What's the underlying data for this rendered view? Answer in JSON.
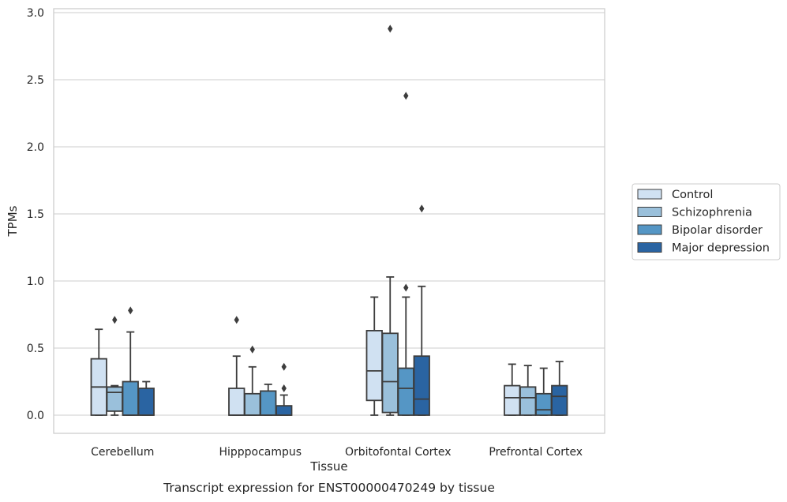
{
  "chart_data": {
    "type": "box",
    "caption": "Transcript expression for ENST00000470249 by tissue",
    "xlabel": "Tissue",
    "ylabel": "TPMs",
    "ylim": [
      -0.14,
      3.03
    ],
    "yticks": [
      "0.0",
      "0.5",
      "1.0",
      "1.5",
      "2.0",
      "2.5",
      "3.0"
    ],
    "grid": "horizontal",
    "legend_position": "right",
    "categories": [
      "Cerebellum",
      "Hipppocampus",
      "Orbitofontal Cortex",
      "Prefrontal Cortex"
    ],
    "series": [
      {
        "name": "Control",
        "color": "#d0e1f2",
        "boxes": [
          {
            "min": 0.0,
            "q1": 0.0,
            "median": 0.21,
            "q3": 0.42,
            "max": 0.64,
            "outliers": []
          },
          {
            "min": 0.0,
            "q1": 0.0,
            "median": 0.0,
            "q3": 0.2,
            "max": 0.44,
            "outliers": [
              0.71
            ]
          },
          {
            "min": 0.0,
            "q1": 0.11,
            "median": 0.33,
            "q3": 0.63,
            "max": 0.88,
            "outliers": []
          },
          {
            "min": 0.0,
            "q1": 0.0,
            "median": 0.13,
            "q3": 0.22,
            "max": 0.38,
            "outliers": []
          }
        ]
      },
      {
        "name": "Schizophrenia",
        "color": "#9ac0db",
        "boxes": [
          {
            "min": 0.0,
            "q1": 0.03,
            "median": 0.17,
            "q3": 0.21,
            "max": 0.22,
            "outliers": [
              0.71
            ]
          },
          {
            "min": 0.0,
            "q1": 0.0,
            "median": 0.0,
            "q3": 0.16,
            "max": 0.36,
            "outliers": [
              0.49
            ]
          },
          {
            "min": 0.0,
            "q1": 0.02,
            "median": 0.25,
            "q3": 0.61,
            "max": 1.03,
            "outliers": [
              2.88
            ]
          },
          {
            "min": 0.0,
            "q1": 0.0,
            "median": 0.13,
            "q3": 0.21,
            "max": 0.37,
            "outliers": []
          }
        ]
      },
      {
        "name": "Bipolar disorder",
        "color": "#5596c5",
        "boxes": [
          {
            "min": 0.0,
            "q1": 0.0,
            "median": 0.0,
            "q3": 0.25,
            "max": 0.62,
            "outliers": [
              0.78
            ]
          },
          {
            "min": 0.0,
            "q1": 0.0,
            "median": 0.0,
            "q3": 0.18,
            "max": 0.23,
            "outliers": []
          },
          {
            "min": 0.0,
            "q1": 0.0,
            "median": 0.2,
            "q3": 0.35,
            "max": 0.88,
            "outliers": [
              0.95,
              2.38
            ]
          },
          {
            "min": 0.0,
            "q1": 0.0,
            "median": 0.04,
            "q3": 0.16,
            "max": 0.35,
            "outliers": []
          }
        ]
      },
      {
        "name": "Major depression",
        "color": "#2a64a2",
        "boxes": [
          {
            "min": 0.0,
            "q1": 0.0,
            "median": 0.0,
            "q3": 0.2,
            "max": 0.25,
            "outliers": []
          },
          {
            "min": 0.0,
            "q1": 0.0,
            "median": 0.0,
            "q3": 0.07,
            "max": 0.15,
            "outliers": [
              0.2,
              0.36
            ]
          },
          {
            "min": 0.0,
            "q1": 0.0,
            "median": 0.12,
            "q3": 0.44,
            "max": 0.96,
            "outliers": [
              1.54
            ]
          },
          {
            "min": 0.0,
            "q1": 0.0,
            "median": 0.14,
            "q3": 0.22,
            "max": 0.4,
            "outliers": []
          }
        ]
      }
    ]
  }
}
